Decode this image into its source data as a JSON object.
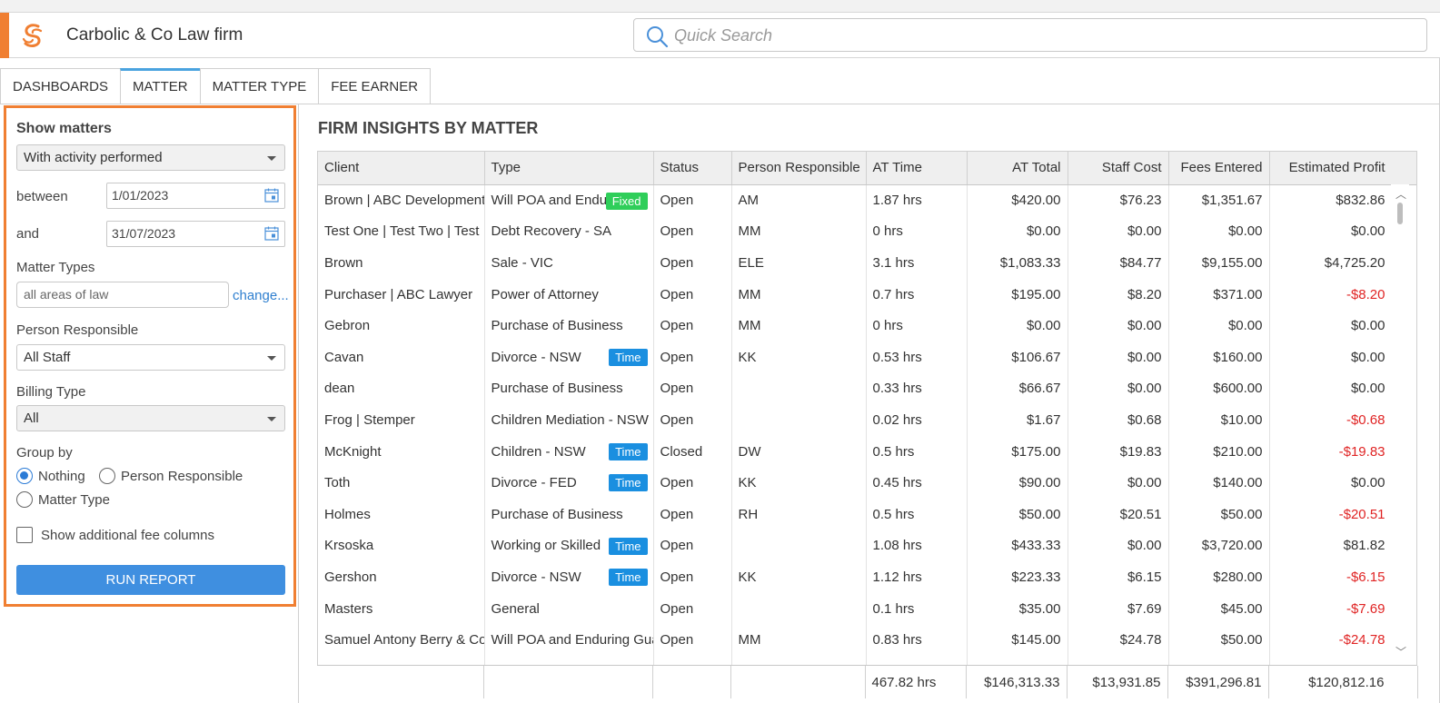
{
  "app": {
    "title": "Carbolic & Co Law firm"
  },
  "search": {
    "placeholder": "Quick Search"
  },
  "tabs": [
    {
      "label": "DASHBOARDS",
      "active": false
    },
    {
      "label": "MATTER",
      "active": true
    },
    {
      "label": "MATTER TYPE",
      "active": false
    },
    {
      "label": "FEE EARNER",
      "active": false
    }
  ],
  "filters": {
    "show_matters_label": "Show matters",
    "show_matters_value": "With activity performed",
    "between_label": "between",
    "between_value": "1/01/2023",
    "and_label": "and",
    "and_value": "31/07/2023",
    "matter_types_label": "Matter Types",
    "matter_types_value": "all areas of law",
    "change_link": "change...",
    "person_responsible_label": "Person Responsible",
    "person_responsible_value": "All Staff",
    "billing_type_label": "Billing Type",
    "billing_type_value": "All",
    "group_by_label": "Group by",
    "group_nothing": "Nothing",
    "group_person": "Person Responsible",
    "group_matter_type": "Matter Type",
    "show_fee_columns": "Show additional fee columns",
    "run_report": "RUN REPORT"
  },
  "report": {
    "title": "FIRM INSIGHTS BY MATTER",
    "columns": [
      "Client",
      "Type",
      "Status",
      "Person Responsible",
      "AT Time",
      "AT Total",
      "Staff Cost",
      "Fees Entered",
      "Estimated Profit"
    ],
    "rows": [
      {
        "client": "Brown | ABC Development",
        "type": "Will POA and Enduring",
        "badge": "Fixed",
        "status": "Open",
        "person": "AM",
        "at_time": "1.87 hrs",
        "at_total": "$420.00",
        "staff_cost": "$76.23",
        "fees": "$1,351.67",
        "profit": "$832.86",
        "negative": false
      },
      {
        "client": "Test One | Test Two | Test",
        "type": "Debt Recovery - SA",
        "badge": "",
        "status": "Open",
        "person": "MM",
        "at_time": "0 hrs",
        "at_total": "$0.00",
        "staff_cost": "$0.00",
        "fees": "$0.00",
        "profit": "$0.00",
        "negative": false
      },
      {
        "client": "Brown",
        "type": "Sale - VIC",
        "badge": "",
        "status": "Open",
        "person": "ELE",
        "at_time": "3.1 hrs",
        "at_total": "$1,083.33",
        "staff_cost": "$84.77",
        "fees": "$9,155.00",
        "profit": "$4,725.20",
        "negative": false
      },
      {
        "client": "Purchaser | ABC Lawyer",
        "type": "Power of Attorney",
        "badge": "",
        "status": "Open",
        "person": "MM",
        "at_time": "0.7 hrs",
        "at_total": "$195.00",
        "staff_cost": "$8.20",
        "fees": "$371.00",
        "profit": "-$8.20",
        "negative": true
      },
      {
        "client": "Gebron",
        "type": "Purchase of Business",
        "badge": "",
        "status": "Open",
        "person": "MM",
        "at_time": "0 hrs",
        "at_total": "$0.00",
        "staff_cost": "$0.00",
        "fees": "$0.00",
        "profit": "$0.00",
        "negative": false
      },
      {
        "client": "Cavan",
        "type": "Divorce - NSW",
        "badge": "Time",
        "status": "Open",
        "person": "KK",
        "at_time": "0.53 hrs",
        "at_total": "$106.67",
        "staff_cost": "$0.00",
        "fees": "$160.00",
        "profit": "$0.00",
        "negative": false
      },
      {
        "client": "dean",
        "type": "Purchase of Business",
        "badge": "",
        "status": "Open",
        "person": "",
        "at_time": "0.33 hrs",
        "at_total": "$66.67",
        "staff_cost": "$0.00",
        "fees": "$600.00",
        "profit": "$0.00",
        "negative": false
      },
      {
        "client": "Frog | Stemper",
        "type": "Children Mediation - NSW",
        "badge": "",
        "status": "Open",
        "person": "",
        "at_time": "0.02 hrs",
        "at_total": "$1.67",
        "staff_cost": "$0.68",
        "fees": "$10.00",
        "profit": "-$0.68",
        "negative": true
      },
      {
        "client": "McKnight",
        "type": "Children - NSW",
        "badge": "Time",
        "status": "Closed",
        "person": "DW",
        "at_time": "0.5 hrs",
        "at_total": "$175.00",
        "staff_cost": "$19.83",
        "fees": "$210.00",
        "profit": "-$19.83",
        "negative": true
      },
      {
        "client": "Toth",
        "type": "Divorce - FED",
        "badge": "Time",
        "status": "Open",
        "person": "KK",
        "at_time": "0.45 hrs",
        "at_total": "$90.00",
        "staff_cost": "$0.00",
        "fees": "$140.00",
        "profit": "$0.00",
        "negative": false
      },
      {
        "client": "Holmes",
        "type": "Purchase of Business",
        "badge": "",
        "status": "Open",
        "person": "RH",
        "at_time": "0.5 hrs",
        "at_total": "$50.00",
        "staff_cost": "$20.51",
        "fees": "$50.00",
        "profit": "-$20.51",
        "negative": true
      },
      {
        "client": "Krsoska",
        "type": "Working or Skilled",
        "badge": "Time",
        "status": "Open",
        "person": "",
        "at_time": "1.08 hrs",
        "at_total": "$433.33",
        "staff_cost": "$0.00",
        "fees": "$3,720.00",
        "profit": "$81.82",
        "negative": false
      },
      {
        "client": "Gershon",
        "type": "Divorce - NSW",
        "badge": "Time",
        "status": "Open",
        "person": "KK",
        "at_time": "1.12 hrs",
        "at_total": "$223.33",
        "staff_cost": "$6.15",
        "fees": "$280.00",
        "profit": "-$6.15",
        "negative": true
      },
      {
        "client": "Masters",
        "type": "General",
        "badge": "",
        "status": "Open",
        "person": "",
        "at_time": "0.1 hrs",
        "at_total": "$35.00",
        "staff_cost": "$7.69",
        "fees": "$45.00",
        "profit": "-$7.69",
        "negative": true
      },
      {
        "client": "Samuel Antony Berry & Co",
        "type": "Will POA and Enduring Guardian",
        "badge": "",
        "status": "Open",
        "person": "MM",
        "at_time": "0.83 hrs",
        "at_total": "$145.00",
        "staff_cost": "$24.78",
        "fees": "$50.00",
        "profit": "-$24.78",
        "negative": true
      }
    ],
    "totals": {
      "at_time": "467.82 hrs",
      "at_total": "$146,313.33",
      "staff_cost": "$13,931.85",
      "fees": "$391,296.81",
      "profit": "$120,812.16"
    }
  },
  "colors": {
    "accent_orange": "#f07f32",
    "primary_blue": "#3f8fe0",
    "time_badge": "#1a8fe0",
    "fixed_badge": "#2fce5a",
    "negative": "#e02424"
  },
  "icons": {
    "logo": "swirl-logo-icon",
    "search": "search-icon",
    "calendar": "calendar-icon"
  }
}
